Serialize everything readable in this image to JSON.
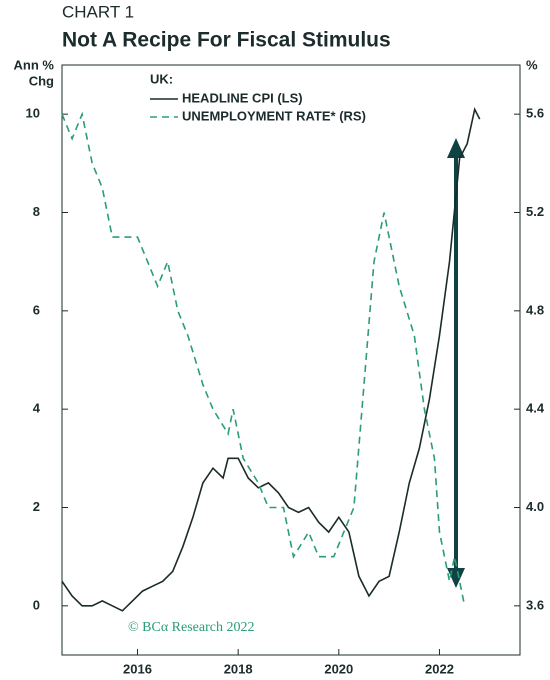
{
  "chart_data": {
    "type": "line",
    "kicker": "CHART 1",
    "title": "Not A Recipe For Fiscal Stimulus",
    "ylabel": [
      "Ann %",
      "Chg"
    ],
    "y2label": "%",
    "legend_title": "UK:",
    "annotation": "© BCα Research 2022",
    "xlim": [
      2014.5,
      2023.6
    ],
    "xticks": [
      2016,
      2018,
      2020,
      2022
    ],
    "ylim": [
      -1,
      11
    ],
    "yticks": [
      0,
      2,
      4,
      6,
      8,
      10
    ],
    "y2lim": [
      3.4,
      5.8
    ],
    "y2ticks": [
      3.6,
      4.0,
      4.4,
      4.8,
      5.2,
      5.6
    ],
    "series": [
      {
        "name": "HEADLINE CPI (LS)",
        "color": "#1c2b2b",
        "dash": false,
        "x": [
          2014.5,
          2014.7,
          2014.9,
          2015.1,
          2015.3,
          2015.5,
          2015.7,
          2015.9,
          2016.1,
          2016.3,
          2016.5,
          2016.7,
          2016.9,
          2017.1,
          2017.3,
          2017.5,
          2017.7,
          2017.8,
          2018.0,
          2018.2,
          2018.4,
          2018.6,
          2018.8,
          2019.0,
          2019.2,
          2019.4,
          2019.6,
          2019.8,
          2020.0,
          2020.2,
          2020.4,
          2020.6,
          2020.8,
          2021.0,
          2021.2,
          2021.4,
          2021.6,
          2021.8,
          2022.0,
          2022.2,
          2022.4,
          2022.55,
          2022.7,
          2022.8
        ],
        "values": [
          0.5,
          0.2,
          0.0,
          0.0,
          0.1,
          0.0,
          -0.1,
          0.1,
          0.3,
          0.4,
          0.5,
          0.7,
          1.2,
          1.8,
          2.5,
          2.8,
          2.6,
          3.0,
          3.0,
          2.6,
          2.4,
          2.5,
          2.3,
          2.0,
          1.9,
          2.0,
          1.7,
          1.5,
          1.8,
          1.5,
          0.6,
          0.2,
          0.5,
          0.6,
          1.5,
          2.5,
          3.2,
          4.2,
          5.5,
          7.0,
          9.1,
          9.4,
          10.1,
          9.9
        ]
      },
      {
        "name": "UNEMPLOYMENT RATE* (RS)",
        "color": "#2a9d78",
        "dash": true,
        "axis": "y2",
        "x": [
          2014.5,
          2014.7,
          2014.9,
          2015.1,
          2015.3,
          2015.5,
          2016.0,
          2016.2,
          2016.4,
          2016.6,
          2016.8,
          2017.0,
          2017.3,
          2017.5,
          2017.8,
          2017.9,
          2018.1,
          2018.4,
          2018.6,
          2018.9,
          2019.1,
          2019.4,
          2019.6,
          2019.9,
          2020.1,
          2020.3,
          2020.5,
          2020.7,
          2020.9,
          2021.0,
          2021.2,
          2021.5,
          2021.7,
          2021.9,
          2022.0,
          2022.2,
          2022.3,
          2022.5
        ],
        "values": [
          5.6,
          5.5,
          5.6,
          5.4,
          5.3,
          5.1,
          5.1,
          5.0,
          4.9,
          5.0,
          4.8,
          4.7,
          4.5,
          4.4,
          4.3,
          4.4,
          4.2,
          4.1,
          4.0,
          4.0,
          3.8,
          3.9,
          3.8,
          3.8,
          3.9,
          4.0,
          4.5,
          5.0,
          5.2,
          5.1,
          4.9,
          4.7,
          4.4,
          4.2,
          3.9,
          3.7,
          3.8,
          3.6
        ]
      }
    ]
  }
}
